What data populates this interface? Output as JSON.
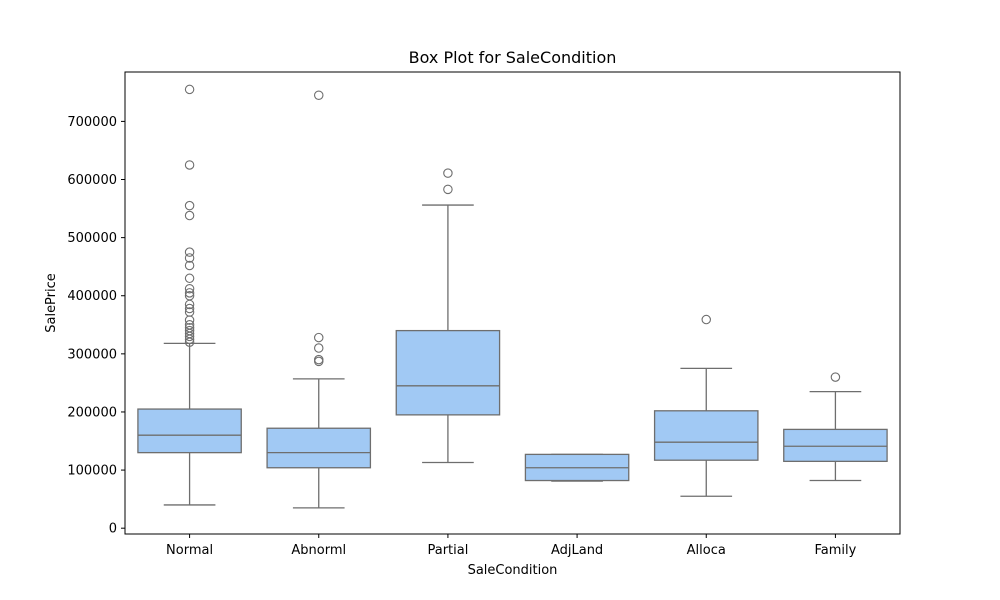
{
  "chart_data": {
    "type": "box",
    "title": "Box Plot for SaleCondition",
    "xlabel": "SaleCondition",
    "ylabel": "SalePrice",
    "ylim": [
      -10000,
      785000
    ],
    "yticks": [
      0,
      100000,
      200000,
      300000,
      400000,
      500000,
      600000,
      700000
    ],
    "ytick_labels": [
      "0",
      "100000",
      "200000",
      "300000",
      "400000",
      "500000",
      "600000",
      "700000"
    ],
    "grid": false,
    "colors": {
      "box_fill": "#a1c9f4",
      "line": "#6e6e6e"
    },
    "categories": [
      "Normal",
      "Abnorml",
      "Partial",
      "AdjLand",
      "Alloca",
      "Family"
    ],
    "boxes": [
      {
        "q1": 130000,
        "median": 160000,
        "q3": 205000,
        "whisker_low": 40000,
        "whisker_high": 318000,
        "outliers": [
          755000,
          625000,
          555000,
          538000,
          475000,
          465000,
          452000,
          430000,
          412000,
          405000,
          400000,
          385000,
          378000,
          372000,
          358000,
          350000,
          345000,
          340000,
          335000,
          330000,
          325000,
          320000
        ]
      },
      {
        "q1": 104000,
        "median": 130000,
        "q3": 172000,
        "whisker_low": 35000,
        "whisker_high": 257000,
        "outliers": [
          745000,
          328000,
          310000,
          290000,
          287000
        ]
      },
      {
        "q1": 195000,
        "median": 245000,
        "q3": 340000,
        "whisker_low": 113000,
        "whisker_high": 556000,
        "outliers": [
          611000,
          583000
        ]
      },
      {
        "q1": 82000,
        "median": 104000,
        "q3": 127000,
        "whisker_low": 81000,
        "whisker_high": 127000,
        "outliers": []
      },
      {
        "q1": 117000,
        "median": 148000,
        "q3": 202000,
        "whisker_low": 55000,
        "whisker_high": 275000,
        "outliers": [
          359000
        ]
      },
      {
        "q1": 115000,
        "median": 141000,
        "q3": 170000,
        "whisker_low": 82000,
        "whisker_high": 235000,
        "outliers": [
          260000
        ]
      }
    ]
  }
}
